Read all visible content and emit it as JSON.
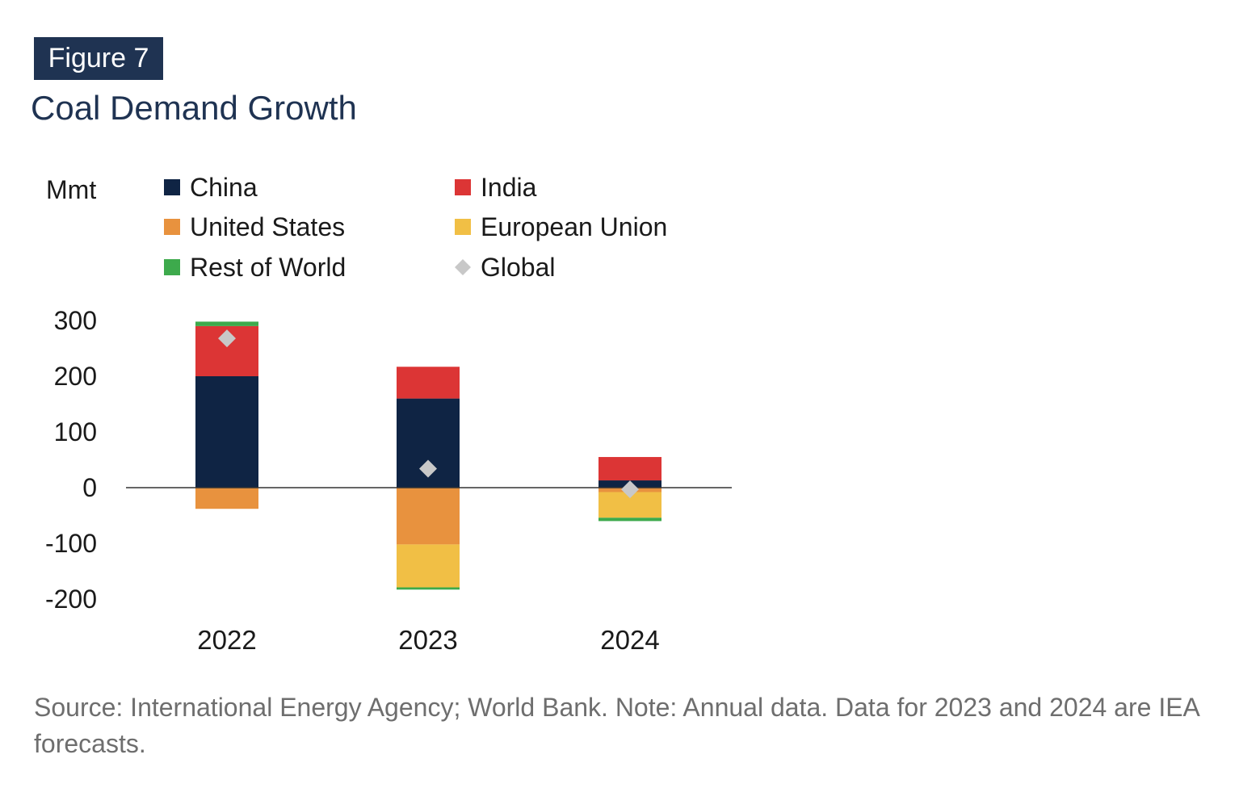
{
  "figure_label": "Figure 7",
  "title": "Coal Demand Growth",
  "source_note": "Source: International Energy Agency; World Bank. Note: Annual data. Data for 2023 and 2024 are IEA forecasts.",
  "chart_data": {
    "type": "bar",
    "stacked": true,
    "title": "Coal Demand Growth",
    "xlabel": "",
    "ylabel": "Mmt",
    "ylim": [
      -200,
      300
    ],
    "yticks": [
      300,
      200,
      100,
      0,
      -100,
      -200
    ],
    "ytick_labels": [
      "300",
      "200",
      "100",
      "0",
      "-100",
      "-200"
    ],
    "categories": [
      "2022",
      "2023",
      "2024"
    ],
    "series": [
      {
        "name": "China",
        "color": "#0f2444",
        "values": [
          200,
          160,
          13
        ]
      },
      {
        "name": "India",
        "color": "#dc3535",
        "values": [
          90,
          57,
          42
        ]
      },
      {
        "name": "United States",
        "color": "#e8923e",
        "values": [
          -38,
          -102,
          -8
        ]
      },
      {
        "name": "European Union",
        "color": "#f1bf45",
        "values": [
          0,
          -77,
          -46
        ]
      },
      {
        "name": "Rest of World",
        "color": "#3daa4c",
        "values": [
          8,
          -4,
          -6
        ]
      }
    ],
    "points": {
      "name": "Global",
      "color": "#c8c8c8",
      "values": [
        268,
        34,
        -3
      ]
    },
    "legend": {
      "placement": "top",
      "items": [
        {
          "label": "China",
          "color": "#0f2444",
          "marker": "square"
        },
        {
          "label": "India",
          "color": "#dc3535",
          "marker": "square"
        },
        {
          "label": "United States",
          "color": "#e8923e",
          "marker": "square"
        },
        {
          "label": "European Union",
          "color": "#f1bf45",
          "marker": "square"
        },
        {
          "label": "Rest of World",
          "color": "#3daa4c",
          "marker": "square"
        },
        {
          "label": "Global",
          "color": "#c8c8c8",
          "marker": "diamond"
        }
      ]
    }
  }
}
